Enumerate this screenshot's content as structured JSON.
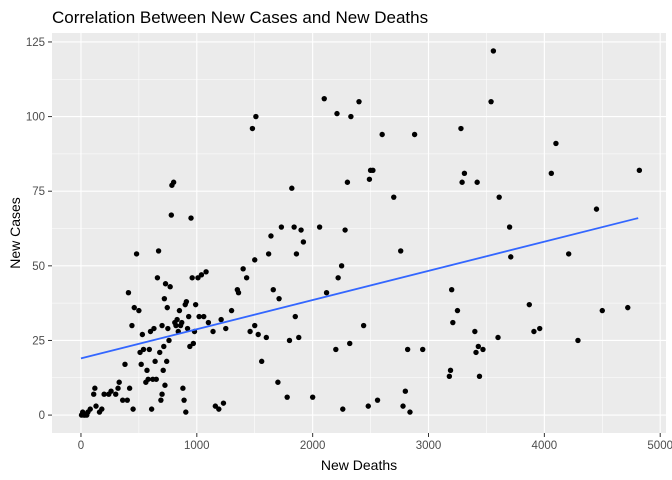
{
  "chart_data": {
    "type": "scatter",
    "title": "Correlation Between New Cases and New Deaths",
    "xlabel": "New Deaths",
    "ylabel": "New Cases",
    "xlim": [
      -250,
      5050
    ],
    "ylim": [
      -6,
      128
    ],
    "xticks": [
      0,
      1000,
      2000,
      3000,
      4000,
      5000
    ],
    "yticks": [
      0,
      25,
      50,
      75,
      100,
      125
    ],
    "xtick_labels": [
      "0",
      "1000",
      "2000",
      "3000",
      "4000",
      "5000"
    ],
    "ytick_labels": [
      "0",
      "25",
      "50",
      "75",
      "100",
      "125"
    ],
    "grid": true,
    "legend": "none",
    "colors": {
      "panel": "#ebebeb",
      "grid": "#ffffff",
      "point": "#000000",
      "trend": "#3366ff"
    },
    "trend_line": {
      "x": [
        0,
        4810
      ],
      "y": [
        19,
        66
      ]
    },
    "points": [
      [
        5,
        0
      ],
      [
        15,
        1
      ],
      [
        25,
        0
      ],
      [
        35,
        0
      ],
      [
        50,
        0
      ],
      [
        60,
        1
      ],
      [
        80,
        2
      ],
      [
        110,
        7
      ],
      [
        120,
        9
      ],
      [
        130,
        3
      ],
      [
        160,
        1
      ],
      [
        180,
        2
      ],
      [
        200,
        7
      ],
      [
        240,
        7
      ],
      [
        260,
        8
      ],
      [
        300,
        7
      ],
      [
        320,
        9
      ],
      [
        330,
        11
      ],
      [
        360,
        5
      ],
      [
        380,
        17
      ],
      [
        400,
        5
      ],
      [
        410,
        41
      ],
      [
        420,
        9
      ],
      [
        440,
        30
      ],
      [
        450,
        2
      ],
      [
        460,
        36
      ],
      [
        480,
        54
      ],
      [
        500,
        35
      ],
      [
        510,
        21
      ],
      [
        520,
        17
      ],
      [
        530,
        27
      ],
      [
        540,
        22
      ],
      [
        560,
        11
      ],
      [
        570,
        15
      ],
      [
        580,
        12
      ],
      [
        590,
        22
      ],
      [
        600,
        28
      ],
      [
        610,
        2
      ],
      [
        620,
        12
      ],
      [
        630,
        29
      ],
      [
        640,
        18
      ],
      [
        650,
        12
      ],
      [
        660,
        46
      ],
      [
        670,
        55
      ],
      [
        680,
        21
      ],
      [
        690,
        5
      ],
      [
        700,
        7
      ],
      [
        700,
        30
      ],
      [
        710,
        15
      ],
      [
        715,
        23
      ],
      [
        720,
        39
      ],
      [
        725,
        10
      ],
      [
        730,
        44
      ],
      [
        740,
        18
      ],
      [
        745,
        36
      ],
      [
        750,
        29
      ],
      [
        760,
        25
      ],
      [
        770,
        43
      ],
      [
        780,
        67
      ],
      [
        785,
        77
      ],
      [
        800,
        78
      ],
      [
        810,
        31
      ],
      [
        820,
        30
      ],
      [
        830,
        32
      ],
      [
        840,
        28
      ],
      [
        850,
        35
      ],
      [
        860,
        30
      ],
      [
        870,
        31
      ],
      [
        880,
        9
      ],
      [
        890,
        5
      ],
      [
        900,
        37
      ],
      [
        905,
        1
      ],
      [
        910,
        38
      ],
      [
        920,
        29
      ],
      [
        930,
        33
      ],
      [
        940,
        23
      ],
      [
        950,
        66
      ],
      [
        960,
        46
      ],
      [
        970,
        24
      ],
      [
        980,
        28
      ],
      [
        990,
        37
      ],
      [
        1010,
        46
      ],
      [
        1020,
        33
      ],
      [
        1040,
        47
      ],
      [
        1060,
        33
      ],
      [
        1080,
        48
      ],
      [
        1100,
        31
      ],
      [
        1140,
        28
      ],
      [
        1160,
        3
      ],
      [
        1190,
        2
      ],
      [
        1210,
        32
      ],
      [
        1230,
        4
      ],
      [
        1250,
        29
      ],
      [
        1300,
        35
      ],
      [
        1350,
        42
      ],
      [
        1360,
        41
      ],
      [
        1400,
        49
      ],
      [
        1430,
        46
      ],
      [
        1460,
        28
      ],
      [
        1480,
        96
      ],
      [
        1500,
        30
      ],
      [
        1500,
        52
      ],
      [
        1510,
        100
      ],
      [
        1530,
        27
      ],
      [
        1560,
        18
      ],
      [
        1600,
        26
      ],
      [
        1620,
        54
      ],
      [
        1640,
        60
      ],
      [
        1660,
        42
      ],
      [
        1700,
        11
      ],
      [
        1710,
        39
      ],
      [
        1730,
        63
      ],
      [
        1780,
        6
      ],
      [
        1800,
        25
      ],
      [
        1820,
        76
      ],
      [
        1840,
        63
      ],
      [
        1850,
        33
      ],
      [
        1860,
        54
      ],
      [
        1880,
        26
      ],
      [
        1900,
        62
      ],
      [
        1920,
        58
      ],
      [
        2000,
        6
      ],
      [
        2060,
        63
      ],
      [
        2100,
        106
      ],
      [
        2120,
        41
      ],
      [
        2200,
        22
      ],
      [
        2210,
        101
      ],
      [
        2220,
        46
      ],
      [
        2250,
        50
      ],
      [
        2260,
        2
      ],
      [
        2280,
        62
      ],
      [
        2300,
        78
      ],
      [
        2320,
        24
      ],
      [
        2330,
        100
      ],
      [
        2400,
        105
      ],
      [
        2440,
        30
      ],
      [
        2480,
        3
      ],
      [
        2490,
        79
      ],
      [
        2500,
        82
      ],
      [
        2520,
        82
      ],
      [
        2560,
        5
      ],
      [
        2600,
        94
      ],
      [
        2700,
        73
      ],
      [
        2760,
        55
      ],
      [
        2780,
        3
      ],
      [
        2800,
        8
      ],
      [
        2820,
        22
      ],
      [
        2840,
        1
      ],
      [
        2880,
        94
      ],
      [
        2950,
        22
      ],
      [
        3180,
        13
      ],
      [
        3190,
        15
      ],
      [
        3200,
        42
      ],
      [
        3210,
        31
      ],
      [
        3250,
        35
      ],
      [
        3280,
        96
      ],
      [
        3290,
        78
      ],
      [
        3310,
        81
      ],
      [
        3400,
        28
      ],
      [
        3410,
        21
      ],
      [
        3420,
        78
      ],
      [
        3430,
        23
      ],
      [
        3440,
        13
      ],
      [
        3470,
        22
      ],
      [
        3540,
        105
      ],
      [
        3560,
        122
      ],
      [
        3600,
        26
      ],
      [
        3610,
        73
      ],
      [
        3700,
        63
      ],
      [
        3710,
        53
      ],
      [
        3870,
        37
      ],
      [
        3910,
        28
      ],
      [
        3960,
        29
      ],
      [
        4060,
        81
      ],
      [
        4100,
        91
      ],
      [
        4210,
        54
      ],
      [
        4290,
        25
      ],
      [
        4450,
        69
      ],
      [
        4500,
        35
      ],
      [
        4720,
        36
      ],
      [
        4820,
        82
      ]
    ]
  }
}
